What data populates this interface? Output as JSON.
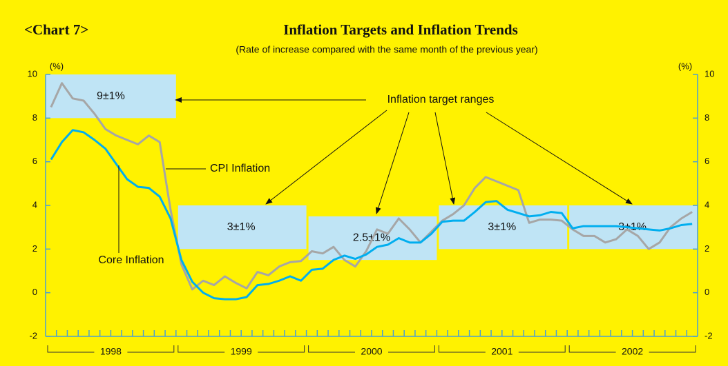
{
  "chart_data": {
    "type": "line",
    "label": "<Chart 7>",
    "title": "Inflation Targets and Inflation Trends",
    "subtitle": "(Rate of increase compared with the same month of the previous year)",
    "ylabel": "(%)",
    "y2label": "(%)",
    "ylim": [
      -2,
      10
    ],
    "yticks": [
      -2,
      0,
      2,
      4,
      6,
      8,
      10
    ],
    "y2lim": [
      -2,
      10
    ],
    "y2ticks": [
      -2,
      0,
      2,
      4,
      6,
      8,
      10
    ],
    "years": [
      {
        "label": "1998",
        "months": 12
      },
      {
        "label": "1999",
        "months": 12
      },
      {
        "label": "2000",
        "months": 12
      },
      {
        "label": "2001",
        "months": 12
      },
      {
        "label": "2002",
        "months": 12
      }
    ],
    "bands": [
      {
        "label": "9±1%",
        "low": 8,
        "high": 10
      },
      {
        "label": "3±1%",
        "low": 2,
        "high": 4
      },
      {
        "label": "2.5±1%",
        "low": 1.5,
        "high": 3.5
      },
      {
        "label": "3±1%",
        "low": 2,
        "high": 4
      },
      {
        "label": "3±1%",
        "low": 2,
        "high": 4
      }
    ],
    "band_color": "#bfe4f5",
    "series": [
      {
        "name": "CPI Inflation",
        "color": "#a6a6a6",
        "values": [
          8.5,
          9.6,
          8.9,
          8.8,
          8.2,
          7.5,
          7.2,
          7.0,
          6.8,
          7.2,
          6.9,
          3.8,
          1.3,
          0.15,
          0.55,
          0.35,
          0.75,
          0.45,
          0.2,
          0.95,
          0.8,
          1.2,
          1.4,
          1.45,
          1.9,
          1.8,
          2.1,
          1.5,
          1.2,
          1.9,
          2.9,
          2.7,
          3.4,
          2.9,
          2.3,
          2.8,
          3.3,
          3.6,
          4.0,
          4.8,
          5.3,
          5.1,
          4.9,
          4.7,
          3.2,
          3.35,
          3.35,
          3.3,
          2.9,
          2.6,
          2.6,
          2.3,
          2.45,
          2.9,
          2.6,
          2.0,
          2.3,
          3.0,
          3.4,
          3.7
        ]
      },
      {
        "name": "Core Inflation",
        "color": "#00aeef",
        "values": [
          6.1,
          6.9,
          7.45,
          7.35,
          7.0,
          6.6,
          5.9,
          5.2,
          4.85,
          4.8,
          4.4,
          3.4,
          1.5,
          0.5,
          0.0,
          -0.25,
          -0.3,
          -0.3,
          -0.2,
          0.35,
          0.4,
          0.55,
          0.75,
          0.55,
          1.05,
          1.1,
          1.5,
          1.7,
          1.55,
          1.75,
          2.1,
          2.2,
          2.5,
          2.3,
          2.3,
          2.7,
          3.25,
          3.3,
          3.3,
          3.7,
          4.15,
          4.2,
          3.8,
          3.65,
          3.5,
          3.55,
          3.7,
          3.65,
          2.95,
          3.05,
          3.05,
          3.05,
          3.05,
          3.0,
          2.95,
          2.9,
          2.85,
          2.95,
          3.1,
          3.15
        ]
      }
    ],
    "annotations": [
      "Inflation target ranges"
    ]
  }
}
